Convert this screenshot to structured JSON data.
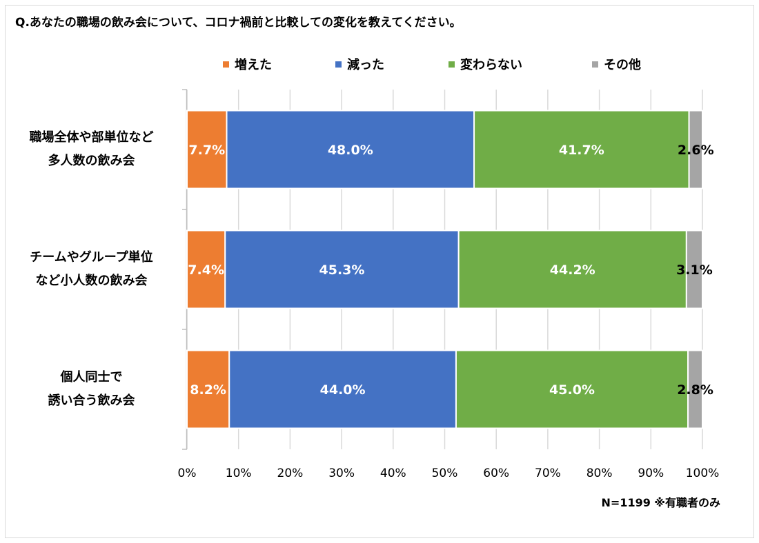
{
  "title": "Q.あなたの職場の飲み会について、コロナ禍前と比較しての変化を教えてください。",
  "footnote": "N=1199 ※有職者のみ",
  "chart_data": {
    "type": "bar",
    "orientation": "horizontal",
    "stacked": "100%",
    "categories": [
      [
        "職場全体や部単位など",
        "多人数の飲み会"
      ],
      [
        "チームやグループ単位",
        "など小人数の飲み会"
      ],
      [
        "個人同士で",
        "誘い合う飲み会"
      ]
    ],
    "series": [
      {
        "name": "増えた",
        "color": "#ed7d31",
        "values": [
          7.7,
          7.4,
          8.2
        ]
      },
      {
        "name": "減った",
        "color": "#4472c4",
        "values": [
          48.0,
          45.3,
          44.0
        ]
      },
      {
        "name": "変わらない",
        "color": "#70ad47",
        "values": [
          41.7,
          44.2,
          45.0
        ]
      },
      {
        "name": "その他",
        "color": "#a5a5a5",
        "values": [
          2.6,
          3.1,
          2.8
        ]
      }
    ],
    "xlim": [
      0,
      100
    ],
    "xticks": [
      "0%",
      "10%",
      "20%",
      "30%",
      "40%",
      "50%",
      "60%",
      "70%",
      "80%",
      "90%",
      "100%"
    ],
    "grid": true,
    "legend_position": "top"
  }
}
